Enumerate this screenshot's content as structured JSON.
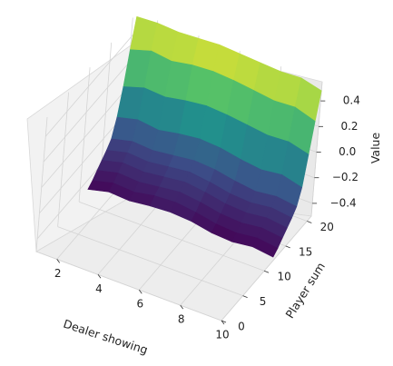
{
  "chart_data": {
    "type": "surface",
    "colormap": "viridis",
    "xlabel": "Dealer showing",
    "ylabel": "Player sum",
    "zlabel": "Value",
    "x_range": [
      1,
      10
    ],
    "y_range": [
      0,
      21
    ],
    "z_range": [
      -0.5,
      0.55
    ],
    "xticks": [
      2,
      4,
      6,
      8,
      10
    ],
    "yticks": [
      0,
      5,
      10,
      15,
      20
    ],
    "zticks": [
      -0.4,
      -0.2,
      0.0,
      0.2,
      0.4
    ],
    "xtick_labels": [
      "2",
      "4",
      "6",
      "8",
      "10"
    ],
    "ytick_labels": [
      "0",
      "5",
      "10",
      "15",
      "20"
    ],
    "ztick_labels": [
      "−0.4",
      "−0.2",
      "0.0",
      "0.2",
      "0.4"
    ],
    "grid": true,
    "x": [
      1,
      2,
      3,
      4,
      5,
      6,
      7,
      8,
      9,
      10
    ],
    "y": [
      12,
      13,
      14,
      15,
      16,
      17,
      18,
      19,
      20,
      21
    ],
    "z": [
      [
        -0.48,
        -0.44,
        -0.45,
        -0.43,
        -0.42,
        -0.43,
        -0.46,
        -0.47,
        -0.45,
        -0.47
      ],
      [
        -0.45,
        -0.41,
        -0.42,
        -0.39,
        -0.38,
        -0.4,
        -0.43,
        -0.44,
        -0.42,
        -0.44
      ],
      [
        -0.41,
        -0.37,
        -0.38,
        -0.36,
        -0.34,
        -0.36,
        -0.39,
        -0.4,
        -0.38,
        -0.4
      ],
      [
        -0.37,
        -0.33,
        -0.34,
        -0.32,
        -0.3,
        -0.32,
        -0.35,
        -0.36,
        -0.34,
        -0.36
      ],
      [
        -0.33,
        -0.29,
        -0.3,
        -0.28,
        -0.26,
        -0.28,
        -0.31,
        -0.32,
        -0.3,
        -0.32
      ],
      [
        -0.28,
        -0.24,
        -0.25,
        -0.23,
        -0.21,
        -0.22,
        -0.25,
        -0.27,
        -0.25,
        -0.27
      ],
      [
        -0.15,
        -0.11,
        -0.13,
        -0.1,
        -0.08,
        -0.09,
        -0.12,
        -0.14,
        -0.12,
        -0.16
      ],
      [
        0.05,
        0.1,
        0.09,
        0.12,
        0.14,
        0.13,
        0.11,
        0.09,
        0.1,
        0.06
      ],
      [
        0.3,
        0.35,
        0.33,
        0.36,
        0.37,
        0.36,
        0.34,
        0.32,
        0.33,
        0.28
      ],
      [
        0.52,
        0.53,
        0.52,
        0.53,
        0.54,
        0.53,
        0.52,
        0.51,
        0.52,
        0.48
      ]
    ]
  }
}
